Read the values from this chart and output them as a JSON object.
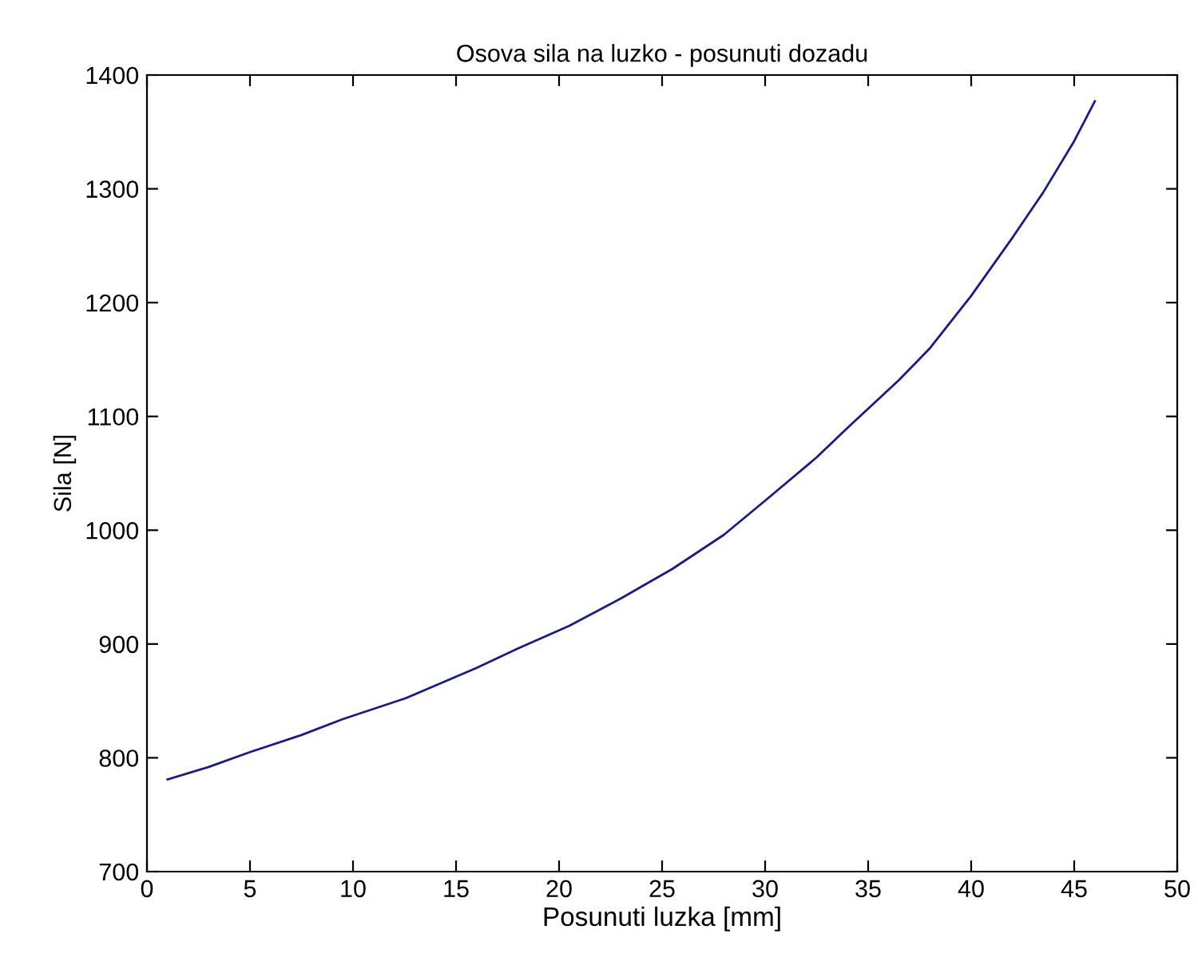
{
  "chart_data": {
    "type": "line",
    "title": "Osova sila na luzko - posunuti dozadu",
    "xlabel": "Posunuti luzka [mm]",
    "ylabel": "Sila [N]",
    "series": [
      {
        "color": "#1a1a8c",
        "x": [
          1,
          3,
          5,
          7.5,
          9.5,
          12.5,
          16,
          18,
          20.5,
          23,
          25.5,
          28,
          30,
          32.5,
          34,
          36.5,
          38,
          40,
          42,
          43.5,
          45,
          46
        ],
        "values": [
          781,
          792,
          805,
          820,
          834,
          852,
          879,
          896,
          916,
          940,
          966,
          996,
          1026,
          1064,
          1090,
          1132,
          1160,
          1206,
          1257,
          1297,
          1342,
          1377
        ]
      }
    ],
    "xlim": [
      0,
      50
    ],
    "xticks": [
      0,
      5,
      10,
      15,
      20,
      25,
      30,
      35,
      40,
      45,
      50
    ],
    "ylim": [
      700,
      1400
    ],
    "yticks": [
      700,
      800,
      900,
      1000,
      1100,
      1200,
      1300,
      1400
    ],
    "grid": false,
    "legend": false,
    "marker": "none",
    "line_style": "solid"
  }
}
